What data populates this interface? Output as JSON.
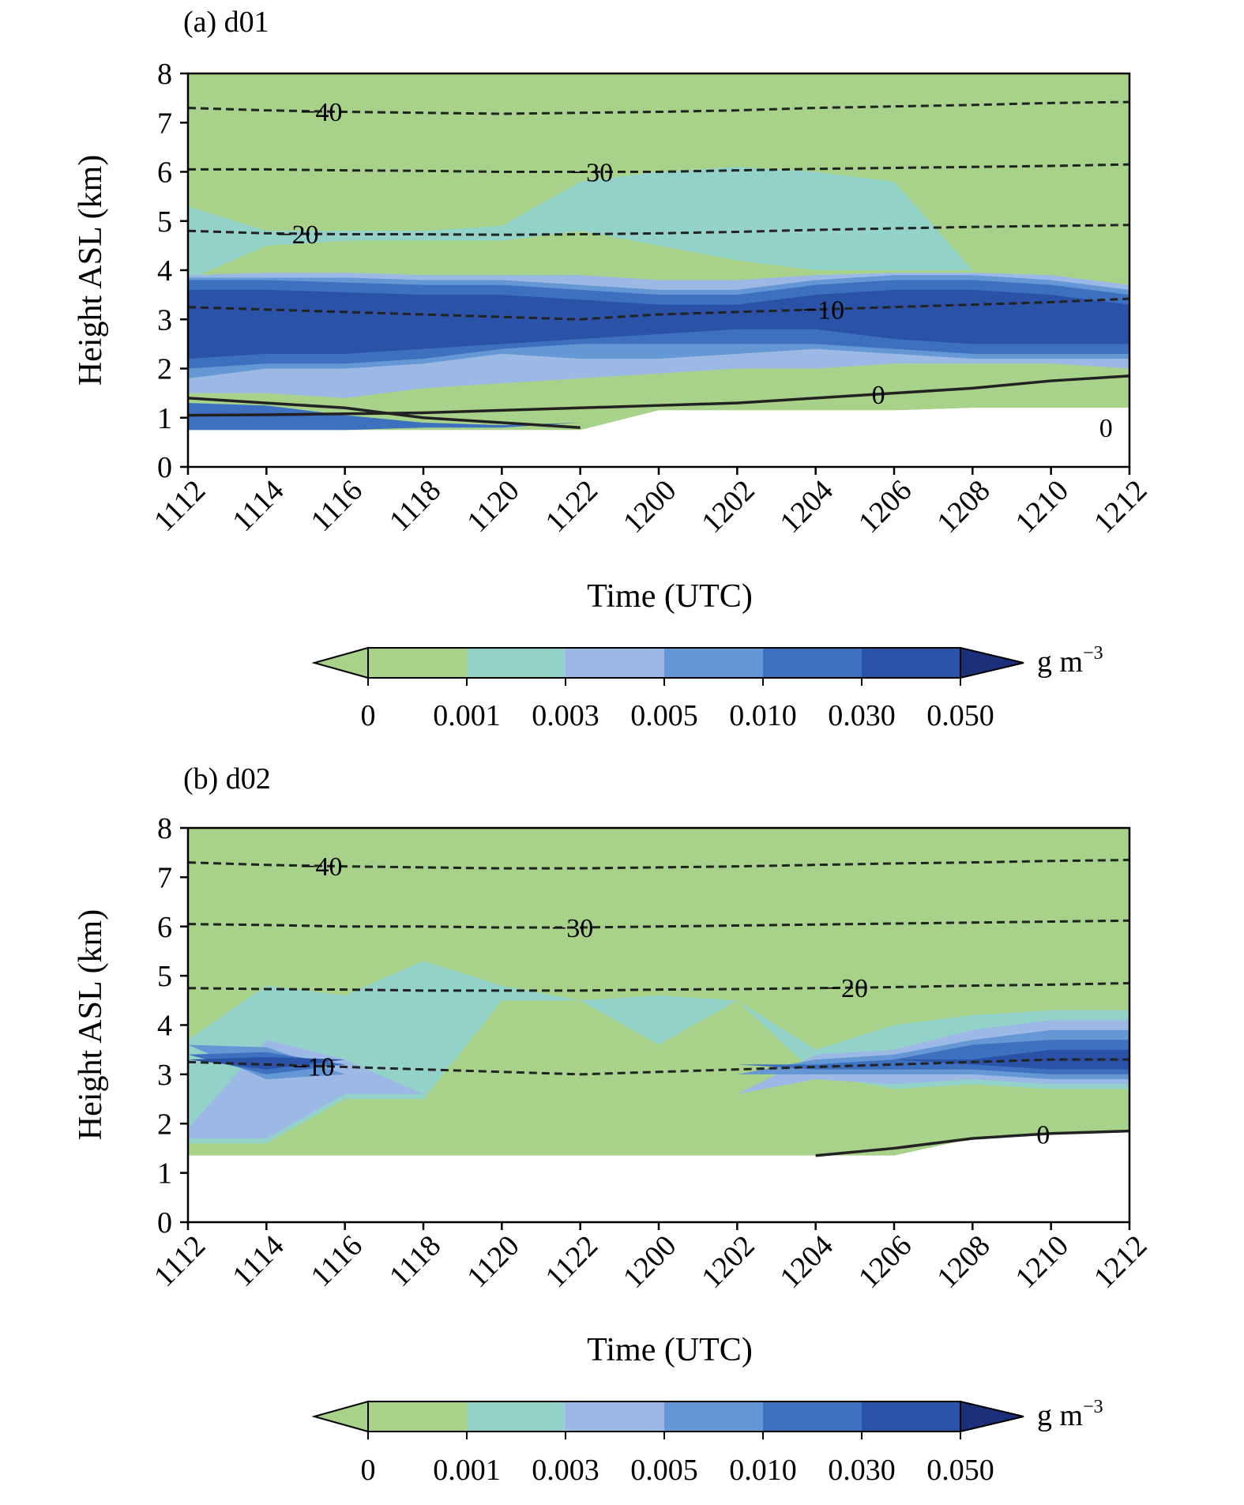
{
  "figure": {
    "colors": {
      "levels": [
        "#a8d28a",
        "#93d2c8",
        "#9bb9e4",
        "#6497d4",
        "#3d70bf",
        "#2a52a6",
        "#1c2f7a"
      ],
      "contour": "#222222",
      "below_ground": "#ffffff"
    },
    "colorbar": {
      "tick_labels": [
        "0",
        "0.001",
        "0.003",
        "0.005",
        "0.010",
        "0.030",
        "0.050"
      ],
      "unit_base": "g m",
      "unit_exponent": "−3",
      "extend": "both"
    }
  },
  "chart_data": [
    {
      "type": "heatmap",
      "subtype": "time-height filled contour with temperature contour lines",
      "title": "(a) d01",
      "xlabel": "Time (UTC)",
      "ylabel": "Height ASL (km)",
      "x_tick_labels": [
        "1112",
        "1114",
        "1116",
        "1118",
        "1120",
        "1122",
        "1200",
        "1202",
        "1204",
        "1206",
        "1208",
        "1210",
        "1212"
      ],
      "y_tick_labels": [
        "0",
        "1",
        "2",
        "3",
        "4",
        "5",
        "6",
        "7",
        "8"
      ],
      "ylim": [
        0,
        8
      ],
      "x": [
        0,
        2,
        4,
        6,
        8,
        10,
        12,
        14,
        16,
        18,
        20,
        22,
        24
      ],
      "ground_height_km": [
        0.75,
        0.75,
        0.75,
        0.75,
        0.75,
        0.75,
        1.15,
        1.15,
        1.15,
        1.15,
        1.2,
        1.2,
        1.2
      ],
      "levels": [
        0,
        0.001,
        0.003,
        0.005,
        0.01,
        0.03,
        0.05
      ],
      "bands": [
        {
          "level": 0.001,
          "bottom_km": [
            3.8,
            4.5,
            4.6,
            4.6,
            4.6,
            4.8,
            4.5,
            4.2,
            4.0,
            4.0,
            4.0,
            3.9,
            3.7
          ],
          "top_km": [
            5.3,
            4.8,
            4.8,
            4.8,
            4.9,
            5.8,
            6.0,
            6.1,
            6.0,
            5.8,
            4.0,
            3.9,
            3.7
          ]
        },
        {
          "level": 0.003,
          "bottom_km": [
            1.5,
            1.5,
            1.4,
            1.6,
            1.7,
            1.8,
            1.9,
            2.0,
            2.0,
            2.1,
            2.1,
            2.1,
            2.0
          ],
          "top_km": [
            3.9,
            3.95,
            3.95,
            3.9,
            3.9,
            3.9,
            3.8,
            3.8,
            3.9,
            3.95,
            3.95,
            3.9,
            3.7
          ]
        },
        {
          "level": 0.005,
          "bottom_km": [
            1.8,
            2.0,
            2.0,
            2.1,
            2.3,
            2.2,
            2.2,
            2.3,
            2.4,
            2.3,
            2.2,
            2.2,
            2.2
          ],
          "top_km": [
            3.85,
            3.85,
            3.85,
            3.8,
            3.8,
            3.7,
            3.6,
            3.6,
            3.8,
            3.9,
            3.9,
            3.8,
            3.6
          ]
        },
        {
          "level": 0.01,
          "bottom_km": [
            2.0,
            2.1,
            2.1,
            2.2,
            2.4,
            2.5,
            2.5,
            2.5,
            2.5,
            2.4,
            2.3,
            2.3,
            2.3
          ],
          "top_km": [
            3.8,
            3.8,
            3.75,
            3.7,
            3.7,
            3.6,
            3.5,
            3.5,
            3.7,
            3.8,
            3.8,
            3.7,
            3.5
          ]
        },
        {
          "level": 0.03,
          "bottom_km": [
            2.2,
            2.3,
            2.3,
            2.4,
            2.5,
            2.6,
            2.7,
            2.8,
            2.8,
            2.6,
            2.5,
            2.5,
            2.5
          ],
          "top_km": [
            3.6,
            3.6,
            3.55,
            3.5,
            3.5,
            3.4,
            3.3,
            3.3,
            3.5,
            3.6,
            3.6,
            3.5,
            3.3
          ]
        },
        {
          "level": 0.01,
          "bottom_km": [
            0.75,
            0.75,
            0.75,
            0.8,
            0.8,
            0.9,
            1.15,
            1.15,
            1.15,
            1.15,
            1.2,
            1.2,
            1.2
          ],
          "top_km": [
            1.3,
            1.25,
            1.05,
            0.9,
            0.85,
            0.9,
            1.15,
            1.15,
            1.15,
            1.15,
            1.2,
            1.2,
            1.2
          ]
        }
      ],
      "contours": [
        {
          "value": -40,
          "label": "−40",
          "style": "dashed",
          "y_km": [
            7.3,
            7.25,
            7.22,
            7.2,
            7.18,
            7.2,
            7.22,
            7.25,
            7.3,
            7.33,
            7.36,
            7.4,
            7.42
          ],
          "label_x": 3.4
        },
        {
          "value": -30,
          "label": "−30",
          "style": "dashed",
          "y_km": [
            6.05,
            6.05,
            6.03,
            6.02,
            6.0,
            6.0,
            6.0,
            6.03,
            6.06,
            6.08,
            6.1,
            6.12,
            6.15
          ],
          "label_x": 10.3
        },
        {
          "value": -20,
          "label": "−20",
          "style": "dashed",
          "y_km": [
            4.8,
            4.75,
            4.73,
            4.73,
            4.72,
            4.73,
            4.75,
            4.78,
            4.82,
            4.85,
            4.88,
            4.9,
            4.92
          ],
          "label_x": 2.8
        },
        {
          "value": -10,
          "label": "−10",
          "style": "dashed",
          "y_km": [
            3.25,
            3.2,
            3.15,
            3.1,
            3.05,
            3.0,
            3.1,
            3.15,
            3.2,
            3.25,
            3.3,
            3.35,
            3.42
          ],
          "label_x": 16.2
        },
        {
          "value": 0,
          "label": "0",
          "style": "solid",
          "y_km": [
            1.05,
            1.06,
            1.08,
            1.1,
            1.15,
            1.2,
            1.25,
            1.3,
            1.4,
            1.5,
            1.6,
            1.75,
            1.85
          ],
          "label_x": 17.6
        },
        {
          "value": 0,
          "label": "",
          "style": "solid",
          "y_km": [
            1.4,
            1.3,
            1.2,
            1.0,
            0.9,
            0.8,
            null,
            null,
            null,
            null,
            null,
            null,
            null
          ],
          "label_x": null
        }
      ],
      "extra_labels": [
        {
          "text": "0",
          "x": 23.4,
          "y_km": 0.8
        }
      ]
    },
    {
      "type": "heatmap",
      "subtype": "time-height filled contour with temperature contour lines",
      "title": "(b) d02",
      "xlabel": "Time (UTC)",
      "ylabel": "Height ASL (km)",
      "x_tick_labels": [
        "1112",
        "1114",
        "1116",
        "1118",
        "1120",
        "1122",
        "1200",
        "1202",
        "1204",
        "1206",
        "1208",
        "1210",
        "1212"
      ],
      "y_tick_labels": [
        "0",
        "1",
        "2",
        "3",
        "4",
        "5",
        "6",
        "7",
        "8"
      ],
      "ylim": [
        0,
        8
      ],
      "x": [
        0,
        2,
        4,
        6,
        8,
        10,
        12,
        14,
        16,
        18,
        20,
        22,
        24
      ],
      "ground_height_km": [
        1.35,
        1.35,
        1.35,
        1.35,
        1.35,
        1.35,
        1.35,
        1.35,
        1.35,
        1.35,
        1.7,
        1.8,
        1.85
      ],
      "levels": [
        0,
        0.001,
        0.003,
        0.005,
        0.01,
        0.03,
        0.05
      ],
      "bands": [
        {
          "level": 0.001,
          "bottom_km": [
            1.6,
            1.6,
            2.5,
            2.5,
            4.5,
            4.5,
            3.6,
            4.5,
            3.0,
            2.7,
            2.8,
            2.7,
            2.7
          ],
          "top_km": [
            3.7,
            4.8,
            4.6,
            5.3,
            4.8,
            4.5,
            4.6,
            4.5,
            3.5,
            4.0,
            4.2,
            4.3,
            4.3
          ]
        },
        {
          "level": 0.003,
          "bottom_km": [
            1.7,
            1.7,
            2.6,
            2.6,
            2.6,
            2.6,
            2.6,
            2.6,
            2.9,
            2.8,
            2.9,
            2.8,
            2.8
          ],
          "top_km": [
            1.9,
            3.7,
            3.3,
            2.6,
            2.6,
            2.6,
            2.6,
            2.6,
            3.4,
            3.5,
            3.9,
            4.1,
            4.1
          ]
        },
        {
          "level": 0.005,
          "bottom_km": [
            3.6,
            2.9,
            3.0,
            3.0,
            3.0,
            3.0,
            3.0,
            3.0,
            3.0,
            3.0,
            3.0,
            2.9,
            2.9
          ],
          "top_km": [
            3.6,
            3.55,
            3.0,
            3.0,
            3.0,
            3.0,
            3.0,
            3.0,
            3.3,
            3.4,
            3.7,
            3.9,
            3.9
          ]
        },
        {
          "level": 0.01,
          "bottom_km": [
            3.4,
            3.0,
            3.2,
            3.2,
            3.2,
            3.2,
            3.2,
            3.2,
            3.1,
            3.1,
            3.1,
            3.0,
            3.0
          ],
          "top_km": [
            3.4,
            3.45,
            3.2,
            3.2,
            3.2,
            3.2,
            3.2,
            3.2,
            3.2,
            3.3,
            3.6,
            3.7,
            3.7
          ]
        },
        {
          "level": 0.03,
          "bottom_km": [
            3.3,
            3.1,
            3.3,
            3.3,
            3.3,
            3.3,
            3.3,
            3.3,
            3.3,
            3.3,
            3.2,
            3.1,
            3.1
          ],
          "top_km": [
            3.3,
            3.35,
            3.3,
            3.3,
            3.3,
            3.3,
            3.3,
            3.3,
            3.3,
            3.3,
            3.3,
            3.5,
            3.5
          ]
        }
      ],
      "contours": [
        {
          "value": -40,
          "label": "−40",
          "style": "dashed",
          "y_km": [
            7.3,
            7.25,
            7.22,
            7.2,
            7.18,
            7.18,
            7.2,
            7.22,
            7.25,
            7.28,
            7.3,
            7.33,
            7.35
          ],
          "label_x": 3.4
        },
        {
          "value": -30,
          "label": "−30",
          "style": "dashed",
          "y_km": [
            6.05,
            6.03,
            6.0,
            6.0,
            5.98,
            5.98,
            6.0,
            6.02,
            6.04,
            6.06,
            6.08,
            6.1,
            6.12
          ],
          "label_x": 9.8
        },
        {
          "value": -20,
          "label": "−20",
          "style": "dashed",
          "y_km": [
            4.75,
            4.73,
            4.72,
            4.7,
            4.7,
            4.7,
            4.72,
            4.73,
            4.75,
            4.77,
            4.8,
            4.82,
            4.85
          ],
          "label_x": 16.8
        },
        {
          "value": -10,
          "label": "−10",
          "style": "dashed",
          "y_km": [
            3.25,
            3.2,
            3.15,
            3.1,
            3.05,
            3.0,
            3.05,
            3.1,
            3.15,
            3.2,
            3.25,
            3.3,
            3.3
          ],
          "label_x": 3.2
        },
        {
          "value": 0,
          "label": "0",
          "style": "solid",
          "y_km": [
            null,
            null,
            null,
            null,
            null,
            null,
            null,
            null,
            1.35,
            1.5,
            1.7,
            1.8,
            1.85
          ],
          "label_x": 21.8
        }
      ],
      "extra_labels": []
    }
  ]
}
